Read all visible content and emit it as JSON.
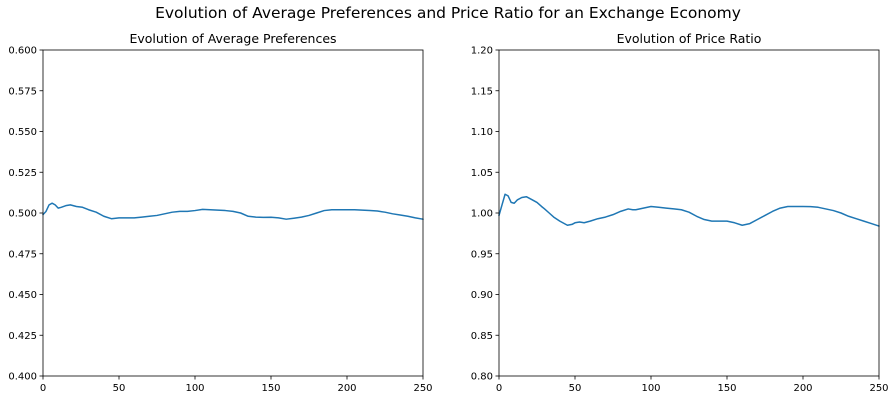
{
  "figure": {
    "suptitle": "Evolution of Average Preferences and Price Ratio for an Exchange Economy"
  },
  "chart_data": [
    {
      "type": "line",
      "title": "Evolution of Average Preferences",
      "xlabel": "",
      "ylabel": "",
      "xlim": [
        0,
        250
      ],
      "ylim": [
        0.4,
        0.6
      ],
      "xticks": [
        0,
        50,
        100,
        150,
        200,
        250
      ],
      "yticks": [
        0.4,
        0.425,
        0.45,
        0.475,
        0.5,
        0.525,
        0.55,
        0.575,
        0.6
      ],
      "ytick_labels": [
        "0.400",
        "0.425",
        "0.450",
        "0.475",
        "0.500",
        "0.525",
        "0.550",
        "0.575",
        "0.600"
      ],
      "grid": false,
      "line_color": "#1f77b4",
      "series": [
        {
          "x": [
            0,
            2,
            4,
            6,
            8,
            10,
            12,
            15,
            18,
            22,
            26,
            30,
            35,
            40,
            45,
            50,
            55,
            60,
            65,
            70,
            75,
            80,
            85,
            90,
            95,
            100,
            105,
            110,
            115,
            120,
            125,
            130,
            135,
            140,
            145,
            150,
            155,
            160,
            165,
            170,
            175,
            180,
            185,
            190,
            195,
            200,
            205,
            210,
            215,
            220,
            225,
            230,
            235,
            240,
            245,
            250
          ],
          "y": [
            0.499,
            0.501,
            0.505,
            0.506,
            0.505,
            0.503,
            0.5035,
            0.5045,
            0.505,
            0.504,
            0.5035,
            0.502,
            0.5005,
            0.498,
            0.4965,
            0.497,
            0.497,
            0.497,
            0.4975,
            0.498,
            0.4985,
            0.4995,
            0.5005,
            0.501,
            0.501,
            0.5015,
            0.5022,
            0.502,
            0.5018,
            0.5015,
            0.501,
            0.5,
            0.498,
            0.4975,
            0.4973,
            0.4974,
            0.497,
            0.4962,
            0.4968,
            0.4975,
            0.4985,
            0.5,
            0.5015,
            0.502,
            0.502,
            0.502,
            0.502,
            0.5018,
            0.5015,
            0.5012,
            0.5005,
            0.4995,
            0.4988,
            0.498,
            0.497,
            0.4962
          ]
        }
      ]
    },
    {
      "type": "line",
      "title": "Evolution of Price Ratio",
      "xlabel": "",
      "ylabel": "",
      "xlim": [
        0,
        250
      ],
      "ylim": [
        0.8,
        1.2
      ],
      "xticks": [
        0,
        50,
        100,
        150,
        200,
        250
      ],
      "yticks": [
        0.8,
        0.85,
        0.9,
        0.95,
        1.0,
        1.05,
        1.1,
        1.15,
        1.2
      ],
      "ytick_labels": [
        "0.80",
        "0.85",
        "0.90",
        "0.95",
        "1.00",
        "1.05",
        "1.10",
        "1.15",
        "1.20"
      ],
      "grid": false,
      "line_color": "#1f77b4",
      "series": [
        {
          "x": [
            0,
            2,
            4,
            6,
            8,
            10,
            12,
            15,
            18,
            20,
            22,
            25,
            28,
            30,
            33,
            36,
            40,
            45,
            48,
            50,
            53,
            56,
            60,
            65,
            70,
            75,
            80,
            85,
            88,
            90,
            95,
            100,
            105,
            110,
            115,
            120,
            125,
            130,
            135,
            140,
            145,
            150,
            155,
            160,
            165,
            170,
            175,
            180,
            185,
            190,
            195,
            200,
            205,
            210,
            215,
            220,
            225,
            230,
            235,
            240,
            245,
            250
          ],
          "y": [
            0.997,
            1.01,
            1.023,
            1.021,
            1.013,
            1.012,
            1.016,
            1.019,
            1.02,
            1.018,
            1.016,
            1.013,
            1.008,
            1.005,
            1.0,
            0.995,
            0.99,
            0.985,
            0.986,
            0.988,
            0.989,
            0.988,
            0.99,
            0.993,
            0.995,
            0.998,
            1.002,
            1.005,
            1.004,
            1.004,
            1.006,
            1.008,
            1.007,
            1.006,
            1.005,
            1.004,
            1.001,
            0.996,
            0.992,
            0.99,
            0.99,
            0.99,
            0.988,
            0.985,
            0.987,
            0.992,
            0.997,
            1.002,
            1.006,
            1.008,
            1.008,
            1.008,
            1.0078,
            1.007,
            1.005,
            1.003,
            1.0,
            0.996,
            0.993,
            0.99,
            0.987,
            0.984
          ]
        }
      ]
    }
  ]
}
